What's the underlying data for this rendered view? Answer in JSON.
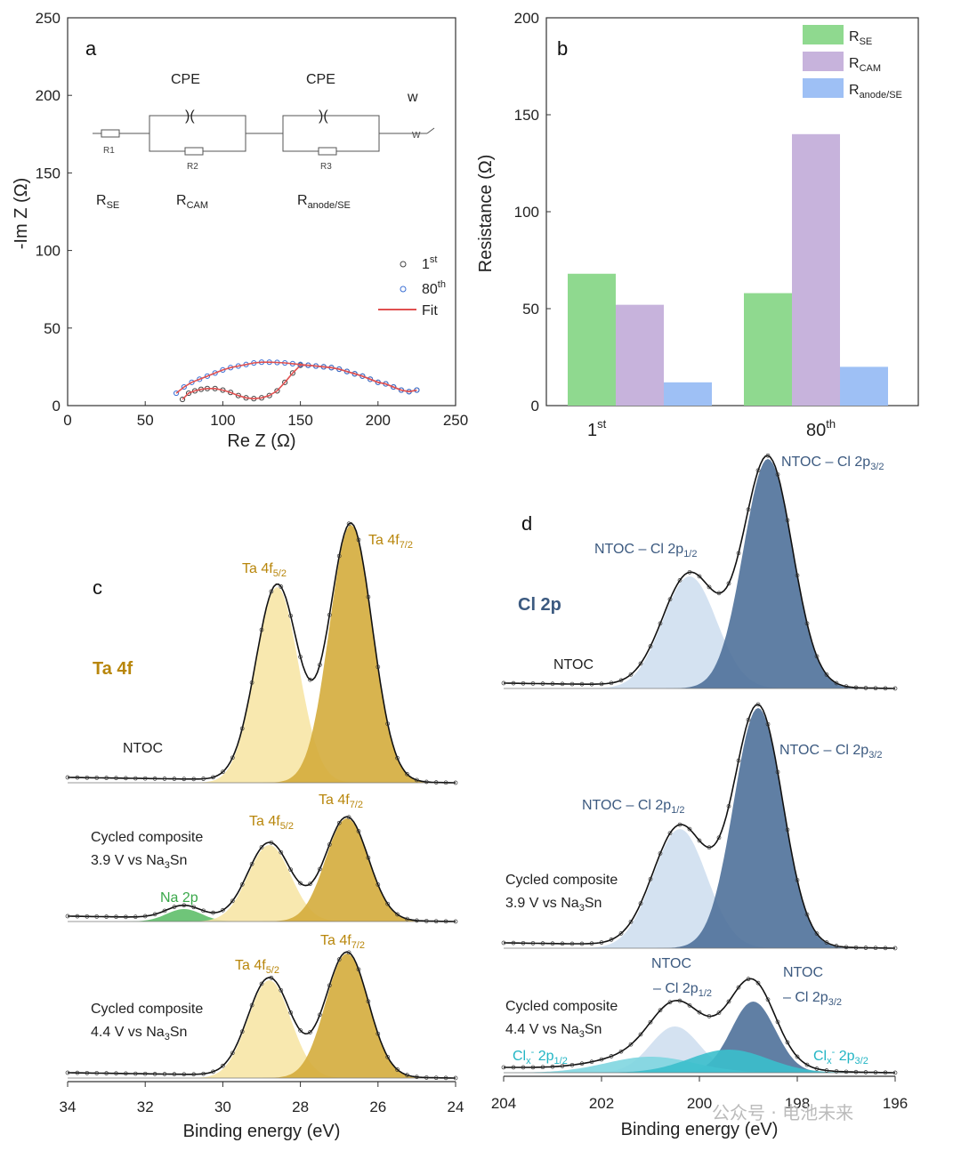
{
  "chart_data": [
    {
      "id": "a",
      "type": "scatter",
      "panel_label": "a",
      "xlabel": "Re Z (Ω)",
      "ylabel": "-Im Z (Ω)",
      "xlim": [
        0,
        250
      ],
      "ylim": [
        0,
        250
      ],
      "xticks": [
        0,
        50,
        100,
        150,
        200,
        250
      ],
      "yticks": [
        0,
        50,
        100,
        150,
        200,
        250
      ],
      "legend": [
        "1st",
        "80th",
        "Fit"
      ],
      "circuit": {
        "cpe1": "CPE",
        "cpe2": "CPE",
        "w": "w",
        "r1": "R1",
        "r2": "R2",
        "r3": "R3",
        "w_symbol": "W",
        "rse": "R",
        "rse_sub": "SE",
        "rcam": "R",
        "rcam_sub": "CAM",
        "ranode": "R",
        "ranode_sub": "anode/SE"
      },
      "series": [
        {
          "name": "1st",
          "color": "#444444",
          "x": [
            74,
            78,
            82,
            86,
            90,
            95,
            100,
            105,
            110,
            115,
            120,
            125,
            130,
            135,
            140,
            145,
            150,
            155,
            160,
            165,
            170,
            175,
            180,
            185,
            190,
            195,
            200,
            205,
            210,
            215,
            220,
            225
          ],
          "y": [
            4,
            8,
            9.5,
            10.5,
            11,
            11,
            10,
            8.5,
            6.5,
            5,
            4.5,
            5,
            6.5,
            9.5,
            15,
            21,
            26,
            26,
            25.5,
            25,
            24.5,
            23.5,
            22,
            20.5,
            19,
            17,
            15,
            14,
            12,
            10,
            9,
            10
          ]
        },
        {
          "name": "80th",
          "color": "#3b6fd4",
          "x": [
            70,
            75,
            80,
            85,
            90,
            95,
            100,
            105,
            110,
            115,
            120,
            125,
            130,
            135,
            140,
            145,
            150,
            155,
            160,
            165,
            170,
            175,
            180,
            185,
            190,
            195,
            200,
            205,
            210,
            215,
            220,
            225
          ],
          "y": [
            8,
            12,
            15,
            17,
            19,
            21,
            23,
            24.5,
            25.5,
            26.5,
            27.5,
            28,
            28,
            27.8,
            27.5,
            27,
            26.5,
            26,
            25.5,
            25,
            24.5,
            23.5,
            22,
            20.5,
            19,
            17,
            15,
            14,
            12,
            10,
            9,
            10
          ]
        }
      ]
    },
    {
      "id": "b",
      "type": "bar",
      "panel_label": "b",
      "ylabel": "Resistance (Ω)",
      "ylim": [
        0,
        200
      ],
      "yticks": [
        0,
        50,
        100,
        150,
        200
      ],
      "categories": [
        {
          "main": "1",
          "sup": "st"
        },
        {
          "main": "80",
          "sup": "th"
        }
      ],
      "series": [
        {
          "name": "R",
          "sub": "SE",
          "color": "#8fd98f",
          "values": [
            68,
            58
          ]
        },
        {
          "name": "R",
          "sub": "CAM",
          "color": "#c7b3dc",
          "values": [
            52,
            140
          ]
        },
        {
          "name": "R",
          "sub": "anode/SE",
          "color": "#9ec0f5",
          "values": [
            12,
            20
          ]
        }
      ]
    },
    {
      "id": "c",
      "type": "line",
      "panel_label": "c",
      "xlabel": "Binding energy (eV)",
      "xlim": [
        34,
        24
      ],
      "xticks": [
        34,
        32,
        30,
        28,
        26,
        24
      ],
      "title": "Ta 4f",
      "spectra": [
        {
          "sample": "NTOC",
          "peaks": [
            {
              "label": "Ta 4f",
              "sub": "5/2",
              "be": 28.6,
              "color": "#f7e6a6"
            },
            {
              "label": "Ta 4f",
              "sub": "7/2",
              "be": 26.7,
              "color": "#d4ac3c"
            }
          ]
        },
        {
          "sample_line1": "Cycled composite",
          "sample_line2": "3.9 V vs Na",
          "sample_sub": "3",
          "sample_end": "Sn",
          "peaks": [
            {
              "label": "Na 2p",
              "be": 31.0,
              "color": "#5fbf6a"
            },
            {
              "label": "Ta 4f",
              "sub": "5/2",
              "be": 28.8,
              "color": "#f7e6a6"
            },
            {
              "label": "Ta 4f",
              "sub": "7/2",
              "be": 26.8,
              "color": "#d4ac3c"
            }
          ]
        },
        {
          "sample_line1": "Cycled composite",
          "sample_line2": "4.4 V vs Na",
          "sample_sub": "3",
          "sample_end": "Sn",
          "peaks": [
            {
              "label": "Ta 4f",
              "sub": "5/2",
              "be": 28.8,
              "color": "#f7e6a6"
            },
            {
              "label": "Ta 4f",
              "sub": "7/2",
              "be": 26.8,
              "color": "#d4ac3c"
            }
          ]
        }
      ]
    },
    {
      "id": "d",
      "type": "line",
      "panel_label": "d",
      "xlabel": "Binding energy (eV)",
      "xlim": [
        204,
        196
      ],
      "xticks": [
        204,
        202,
        200,
        198,
        196
      ],
      "title": "Cl 2p",
      "spectra": [
        {
          "sample": "NTOC",
          "peaks": [
            {
              "label": "NTOC – Cl 2p",
              "sub": "1/2",
              "be": 200.2,
              "color": "#cfdff0"
            },
            {
              "label": "NTOC – Cl 2p",
              "sub": "3/2",
              "be": 198.6,
              "color": "#4f719a"
            }
          ]
        },
        {
          "sample_line1": "Cycled composite",
          "sample_line2": "3.9 V vs Na",
          "sample_sub": "3",
          "sample_end": "Sn",
          "peaks": [
            {
              "label": "NTOC – Cl 2p",
              "sub": "1/2",
              "be": 200.4,
              "color": "#cfdff0"
            },
            {
              "label": "NTOC – Cl 2p",
              "sub": "3/2",
              "be": 198.8,
              "color": "#4f719a"
            }
          ]
        },
        {
          "sample_line1": "Cycled composite",
          "sample_line2": "4.4 V vs Na",
          "sample_sub": "3",
          "sample_end": "Sn",
          "peaks": [
            {
              "label": "NTOC",
              "label2": "– Cl 2p",
              "sub": "1/2",
              "be": 200.5,
              "color": "#cfdff0"
            },
            {
              "label": "NTOC",
              "label2": "– Cl 2p",
              "sub": "3/2",
              "be": 198.9,
              "color": "#4f719a"
            },
            {
              "label": "Cl",
              "sub": "x",
              "sup": "-",
              "end": " 2p",
              "sub2": "1/2",
              "be": 201.0,
              "color": "#7fd6e0"
            },
            {
              "label": "Cl",
              "sub": "x",
              "sup": "-",
              "end": " 2p",
              "sub2": "3/2",
              "be": 199.4,
              "color": "#3bbfcc"
            }
          ]
        }
      ]
    }
  ],
  "watermark": "公众号 · 电池未来"
}
